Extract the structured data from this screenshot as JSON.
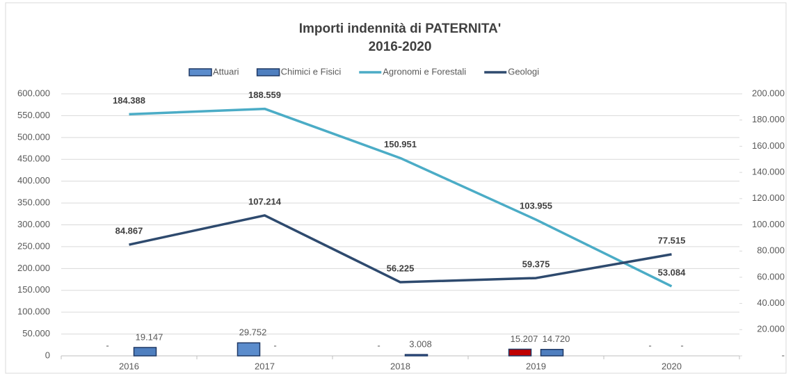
{
  "chart_data": {
    "type": "bar",
    "title": "Importi indennità di PATERNITA'",
    "subtitle": "2016-2020",
    "categories": [
      "2016",
      "2017",
      "2018",
      "2019",
      "2020"
    ],
    "ylim": [
      0,
      600000
    ],
    "yticks": [
      0,
      {
        "value": 50000,
        "label": "50.000"
      },
      {
        "value": 100000,
        "label": "100.000"
      },
      {
        "value": 150000,
        "label": "150.000"
      },
      {
        "value": 200000,
        "label": "200.000"
      },
      {
        "value": 250000,
        "label": "250.000"
      },
      {
        "value": 300000,
        "label": "300.000"
      },
      {
        "value": 350000,
        "label": "350.000"
      },
      {
        "value": 400000,
        "label": "400.000"
      },
      {
        "value": 450000,
        "label": "450.000"
      },
      {
        "value": 500000,
        "label": "500.000"
      },
      {
        "value": 550000,
        "label": "550.000"
      },
      {
        "value": 600000,
        "label": "600.000"
      }
    ],
    "y2lim": [
      0,
      200000
    ],
    "y2ticks": [
      {
        "value": 0,
        "label": "-"
      },
      {
        "value": 20000,
        "label": "20.000"
      },
      {
        "value": 40000,
        "label": "40.000"
      },
      {
        "value": 60000,
        "label": "60.000"
      },
      {
        "value": 80000,
        "label": "80.000"
      },
      {
        "value": 100000,
        "label": "100.000"
      },
      {
        "value": 120000,
        "label": "120.000"
      },
      {
        "value": 140000,
        "label": "140.000"
      },
      {
        "value": 160000,
        "label": "160.000"
      },
      {
        "value": 180000,
        "label": "180.000"
      },
      {
        "value": 200000,
        "label": "200.000"
      }
    ],
    "grid": true,
    "legend": "top",
    "series": [
      {
        "name": "Attuari",
        "type": "bar",
        "color": "#5b8ccc",
        "colors": [
          "#5b8ccc",
          "#5b8ccc",
          "#5b8ccc",
          "#c00000",
          "#5b8ccc"
        ],
        "values": [
          0,
          29752,
          0,
          15207,
          0
        ],
        "value_labels": [
          "-",
          "29.752",
          "-",
          "15.207",
          "-"
        ]
      },
      {
        "name": "Chimici e Fisici",
        "type": "bar",
        "color": "#4f7fbf",
        "values": [
          19147,
          0,
          3008,
          14720,
          0
        ],
        "value_labels": [
          "19.147",
          "-",
          "3.008",
          "14.720",
          "-"
        ]
      },
      {
        "name": "Agronomi e Forestali",
        "type": "line",
        "axis": "y2",
        "color": "#4bacc6",
        "values": [
          184388,
          188559,
          150951,
          103955,
          53084
        ],
        "value_labels": [
          "184.388",
          "188.559",
          "150.951",
          "103.955",
          "53.084"
        ]
      },
      {
        "name": "Geologi",
        "type": "line",
        "axis": "y2",
        "color": "#2e4a6e",
        "values": [
          84867,
          107214,
          56225,
          59375,
          77515
        ],
        "value_labels": [
          "84.867",
          "107.214",
          "56.225",
          "59.375",
          "77.515"
        ]
      }
    ]
  }
}
